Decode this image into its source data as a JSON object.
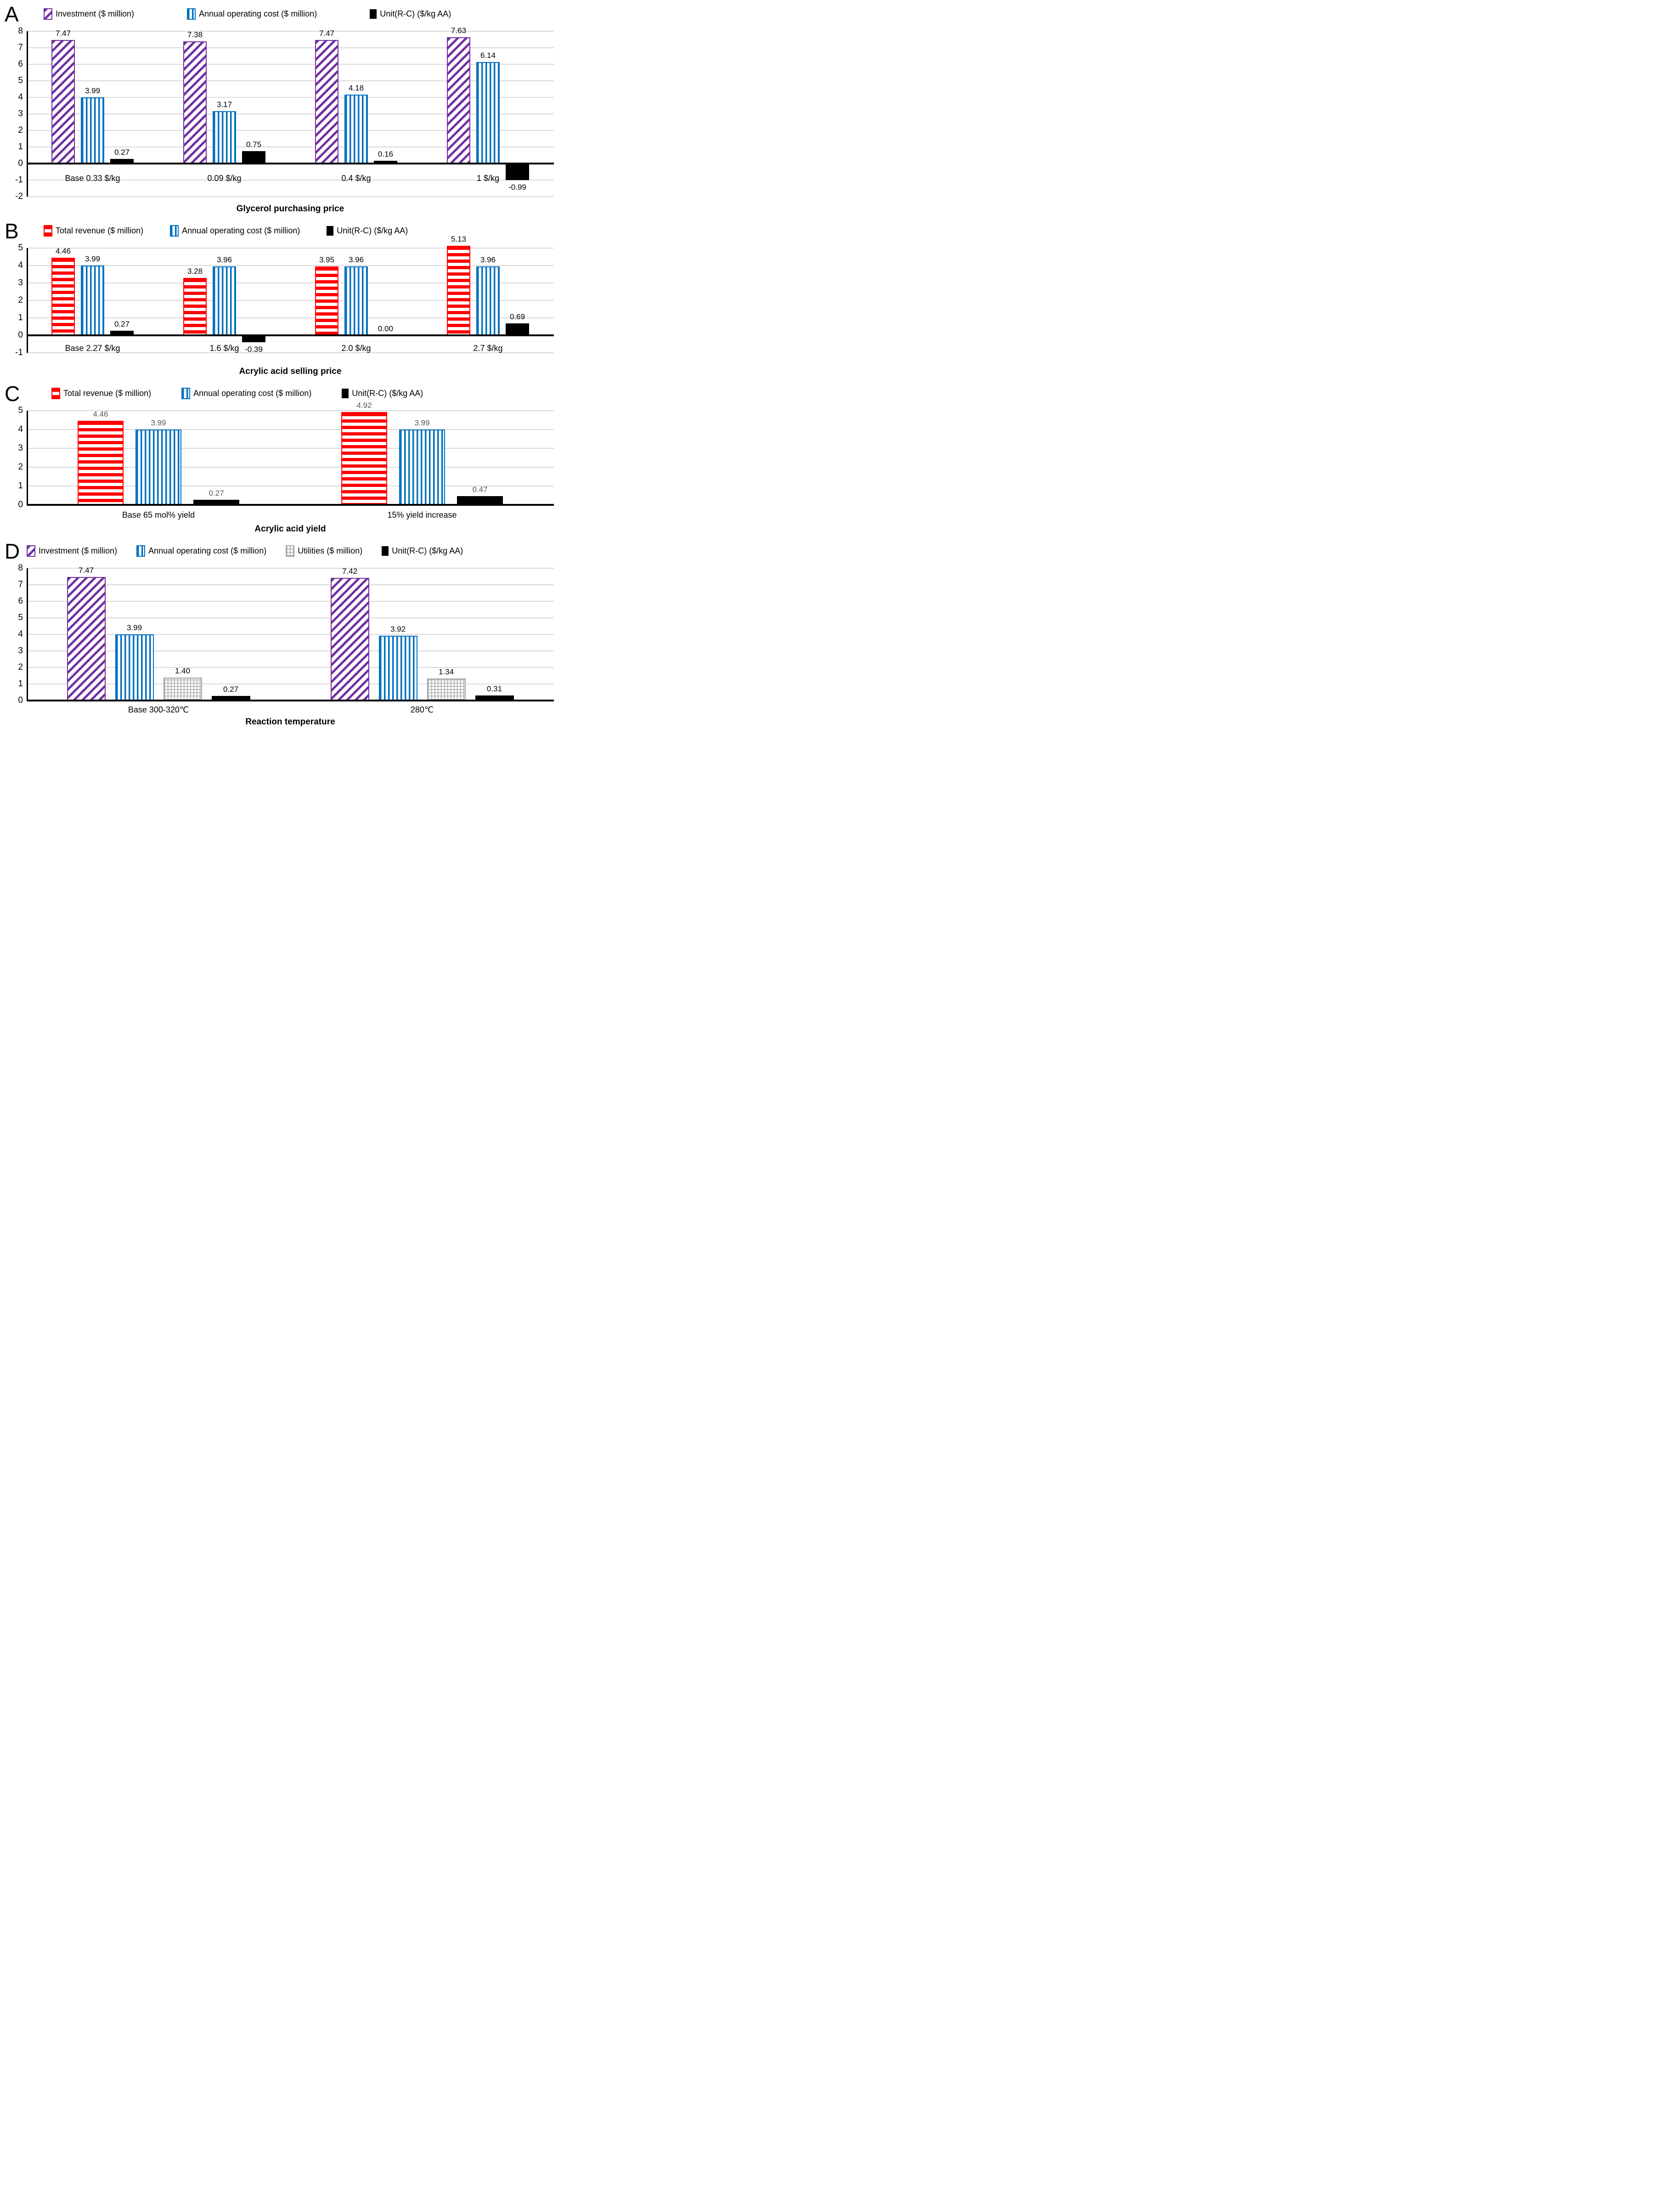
{
  "chart_data": [
    {
      "type": "bar",
      "panel_label": "A",
      "xlabel": "Glycerol purchasing price",
      "categories": [
        "Base 0.33 $/kg",
        "0.09 $/kg",
        "0.4 $/kg",
        "1 $/kg"
      ],
      "series": [
        {
          "name": "Investment ($ million)",
          "pattern": "purple-diagonal-hatch",
          "color": "#7030A0",
          "values": [
            7.47,
            7.38,
            7.47,
            7.63
          ],
          "labels": [
            "7.47",
            "7.38",
            "7.47",
            "7.63"
          ]
        },
        {
          "name": "Annual operating cost ($ million)",
          "pattern": "blue-vertical-stripes",
          "color": "#0070C0",
          "values": [
            3.99,
            3.17,
            4.18,
            6.14
          ],
          "labels": [
            "3.99",
            "3.17",
            "4.18",
            "6.14"
          ]
        },
        {
          "name": "Unit(R-C) ($/kg AA)",
          "pattern": "black-solid",
          "color": "#000000",
          "values": [
            0.27,
            0.75,
            0.16,
            -0.99
          ],
          "labels": [
            "0.27",
            "0.75",
            "0.16",
            "-0.99"
          ]
        }
      ],
      "ylim": [
        -2,
        8
      ],
      "yticks": [
        8,
        7,
        6,
        5,
        4,
        3,
        2,
        1,
        0,
        -1,
        -2
      ],
      "grid": true,
      "legend_position": "top",
      "value_label_color": "#000000",
      "gridline_color": "#d9d9d9"
    },
    {
      "type": "bar",
      "panel_label": "B",
      "xlabel": "Acrylic acid selling price",
      "categories": [
        "Base 2.27 $/kg",
        "1.6 $/kg",
        "2.0 $/kg",
        "2.7 $/kg"
      ],
      "series": [
        {
          "name": "Total revenue ($ million)",
          "pattern": "red-horizontal-stripes",
          "color": "#FF0000",
          "values": [
            4.46,
            3.28,
            3.95,
            5.13
          ],
          "labels": [
            "4.46",
            "3.28",
            "3.95",
            "5.13"
          ]
        },
        {
          "name": "Annual operating cost ($ million)",
          "pattern": "blue-vertical-stripes",
          "color": "#0070C0",
          "values": [
            3.99,
            3.96,
            3.96,
            3.96
          ],
          "labels": [
            "3.99",
            "3.96",
            "3.96",
            "3.96"
          ]
        },
        {
          "name": "Unit(R-C) ($/kg AA)",
          "pattern": "black-solid",
          "color": "#000000",
          "values": [
            0.27,
            -0.39,
            0.0,
            0.69
          ],
          "labels": [
            "0.27",
            "-0.39",
            "0.00",
            "0.69"
          ]
        }
      ],
      "ylim": [
        -1,
        5
      ],
      "yticks": [
        5,
        4,
        3,
        2,
        1,
        0,
        -1
      ],
      "grid": true,
      "legend_position": "top",
      "value_label_color": "#000000",
      "gridline_color": "#d9d9d9"
    },
    {
      "type": "bar",
      "panel_label": "C",
      "xlabel": "Acrylic acid yield",
      "categories": [
        "Base 65 mol% yield",
        "15% yield increase"
      ],
      "series": [
        {
          "name": "Total revenue ($ million)",
          "pattern": "red-horizontal-stripes",
          "color": "#FF0000",
          "values": [
            4.46,
            4.92
          ],
          "labels": [
            "4.46",
            "4.92"
          ]
        },
        {
          "name": "Annual operating cost ($ million)",
          "pattern": "blue-vertical-stripes",
          "color": "#0070C0",
          "values": [
            3.99,
            3.99
          ],
          "labels": [
            "3.99",
            "3.99"
          ]
        },
        {
          "name": "Unit(R-C) ($/kg AA)",
          "pattern": "black-solid",
          "color": "#000000",
          "values": [
            0.27,
            0.47
          ],
          "labels": [
            "0.27",
            "0.47"
          ]
        }
      ],
      "ylim": [
        0,
        5
      ],
      "yticks": [
        5,
        4,
        3,
        2,
        1,
        0
      ],
      "grid": true,
      "legend_position": "top",
      "value_label_color": "#595959",
      "gridline_color": "#d9d9d9"
    },
    {
      "type": "bar",
      "panel_label": "D",
      "xlabel": "Reaction temperature",
      "categories": [
        "Base 300-320℃",
        "280℃"
      ],
      "series": [
        {
          "name": "Investment ($ million)",
          "pattern": "purple-diagonal-hatch",
          "color": "#7030A0",
          "values": [
            7.47,
            7.42
          ],
          "labels": [
            "7.47",
            "7.42"
          ]
        },
        {
          "name": "Annual operating cost ($ million)",
          "pattern": "blue-vertical-stripes",
          "color": "#0070C0",
          "values": [
            3.99,
            3.92
          ],
          "labels": [
            "3.99",
            "3.92"
          ]
        },
        {
          "name": "Utilities ($ million)",
          "pattern": "gray-grid",
          "color": "#A6A6A6",
          "values": [
            1.4,
            1.34
          ],
          "labels": [
            "1.40",
            "1.34"
          ]
        },
        {
          "name": "Unit(R-C) ($/kg AA)",
          "pattern": "black-solid",
          "color": "#000000",
          "values": [
            0.27,
            0.31
          ],
          "labels": [
            "0.27",
            "0.31"
          ]
        }
      ],
      "ylim": [
        0,
        8
      ],
      "yticks": [
        8,
        7,
        6,
        5,
        4,
        3,
        2,
        1,
        0
      ],
      "grid": true,
      "legend_position": "top",
      "value_label_color": "#000000",
      "gridline_color": "#d9d9d9"
    }
  ]
}
